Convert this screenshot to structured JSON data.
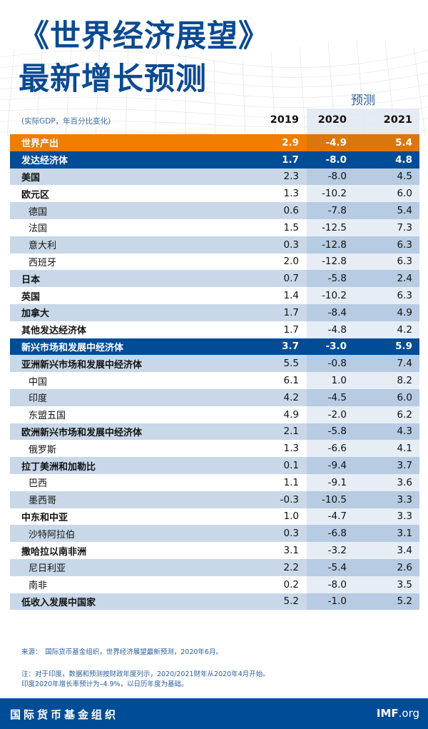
{
  "header": {
    "title_line1": "《世界经济展望》",
    "title_line2": "最新增长预测",
    "forecast_label": "预测",
    "subtitle": "(实际GDP，年百分比变化)",
    "years": [
      "2019",
      "2020",
      "2021"
    ]
  },
  "colors": {
    "brand_blue": "#004C97",
    "title_blue": "#0B4A92",
    "orange": "#EE7D00",
    "row_shade": "#C8D8E8",
    "forecast_shade": "#B7CBE2"
  },
  "table": {
    "columns": [
      "",
      "2019",
      "2020",
      "2021"
    ],
    "rows": [
      {
        "name": "世界产出",
        "v2019": "2.9",
        "v2020": "-4.9",
        "v2021": "5.4",
        "style": "orange"
      },
      {
        "name": "发达经济体",
        "v2019": "1.7",
        "v2020": "-8.0",
        "v2021": "4.8",
        "style": "blue"
      },
      {
        "name": "美国",
        "v2019": "2.3",
        "v2020": "-8.0",
        "v2021": "4.5",
        "style": "shade bold"
      },
      {
        "name": "欧元区",
        "v2019": "1.3",
        "v2020": "-10.2",
        "v2021": "6.0",
        "style": "white bold"
      },
      {
        "name": "德国",
        "v2019": "0.6",
        "v2020": "-7.8",
        "v2021": "5.4",
        "style": "shade indent"
      },
      {
        "name": "法国",
        "v2019": "1.5",
        "v2020": "-12.5",
        "v2021": "7.3",
        "style": "white indent"
      },
      {
        "name": "意大利",
        "v2019": "0.3",
        "v2020": "-12.8",
        "v2021": "6.3",
        "style": "shade indent"
      },
      {
        "name": "西班牙",
        "v2019": "2.0",
        "v2020": "-12.8",
        "v2021": "6.3",
        "style": "white indent"
      },
      {
        "name": "日本",
        "v2019": "0.7",
        "v2020": "-5.8",
        "v2021": "2.4",
        "style": "shade bold"
      },
      {
        "name": "英国",
        "v2019": "1.4",
        "v2020": "-10.2",
        "v2021": "6.3",
        "style": "white bold"
      },
      {
        "name": "加拿大",
        "v2019": "1.7",
        "v2020": "-8.4",
        "v2021": "4.9",
        "style": "shade bold"
      },
      {
        "name": "其他发达经济体",
        "v2019": "1.7",
        "v2020": "-4.8",
        "v2021": "4.2",
        "style": "white bold"
      },
      {
        "name": "新兴市场和发展中经济体",
        "v2019": "3.7",
        "v2020": "-3.0",
        "v2021": "5.9",
        "style": "blue"
      },
      {
        "name": "亚洲新兴市场和发展中经济体",
        "v2019": "5.5",
        "v2020": "-0.8",
        "v2021": "7.4",
        "style": "shade bold"
      },
      {
        "name": "中国",
        "v2019": "6.1",
        "v2020": "1.0",
        "v2021": "8.2",
        "style": "white indent"
      },
      {
        "name": "印度",
        "v2019": "4.2",
        "v2020": "-4.5",
        "v2021": "6.0",
        "style": "shade indent"
      },
      {
        "name": "东盟五国",
        "v2019": "4.9",
        "v2020": "-2.0",
        "v2021": "6.2",
        "style": "white indent"
      },
      {
        "name": "欧洲新兴市场和发展中经济体",
        "v2019": "2.1",
        "v2020": "-5.8",
        "v2021": "4.3",
        "style": "shade bold"
      },
      {
        "name": "俄罗斯",
        "v2019": "1.3",
        "v2020": "-6.6",
        "v2021": "4.1",
        "style": "white indent"
      },
      {
        "name": "拉丁美洲和加勒比",
        "v2019": "0.1",
        "v2020": "-9.4",
        "v2021": "3.7",
        "style": "shade bold"
      },
      {
        "name": "巴西",
        "v2019": "1.1",
        "v2020": "-9.1",
        "v2021": "3.6",
        "style": "white indent"
      },
      {
        "name": "墨西哥",
        "v2019": "-0.3",
        "v2020": "-10.5",
        "v2021": "3.3",
        "style": "shade indent"
      },
      {
        "name": "中东和中亚",
        "v2019": "1.0",
        "v2020": "-4.7",
        "v2021": "3.3",
        "style": "white bold"
      },
      {
        "name": "沙特阿拉伯",
        "v2019": "0.3",
        "v2020": "-6.8",
        "v2021": "3.1",
        "style": "shade indent"
      },
      {
        "name": "撒哈拉以南非洲",
        "v2019": "3.1",
        "v2020": "-3.2",
        "v2021": "3.4",
        "style": "white bold"
      },
      {
        "name": "尼日利亚",
        "v2019": "2.2",
        "v2020": "-5.4",
        "v2021": "2.6",
        "style": "shade indent"
      },
      {
        "name": "南非",
        "v2019": "0.2",
        "v2020": "-8.0",
        "v2021": "3.5",
        "style": "white indent"
      },
      {
        "name": "低收入发展中国家",
        "v2019": "5.2",
        "v2020": "-1.0",
        "v2021": "5.2",
        "style": "shade bold"
      }
    ]
  },
  "notes": {
    "source": "来源：　国际货币基金组织，世界经济展望最新预测，2020年6月。",
    "note_line1": "注：对于印度，数据和预测按财政年度列示，2020/2021财年从2020年4月开始。",
    "note_line2": "印度2020年增长率预计为–4.9%，以日历年度为基础。"
  },
  "footer": {
    "org_name": "国际货币基金组织",
    "site_bold": "IMF",
    "site_rest": ".org"
  }
}
